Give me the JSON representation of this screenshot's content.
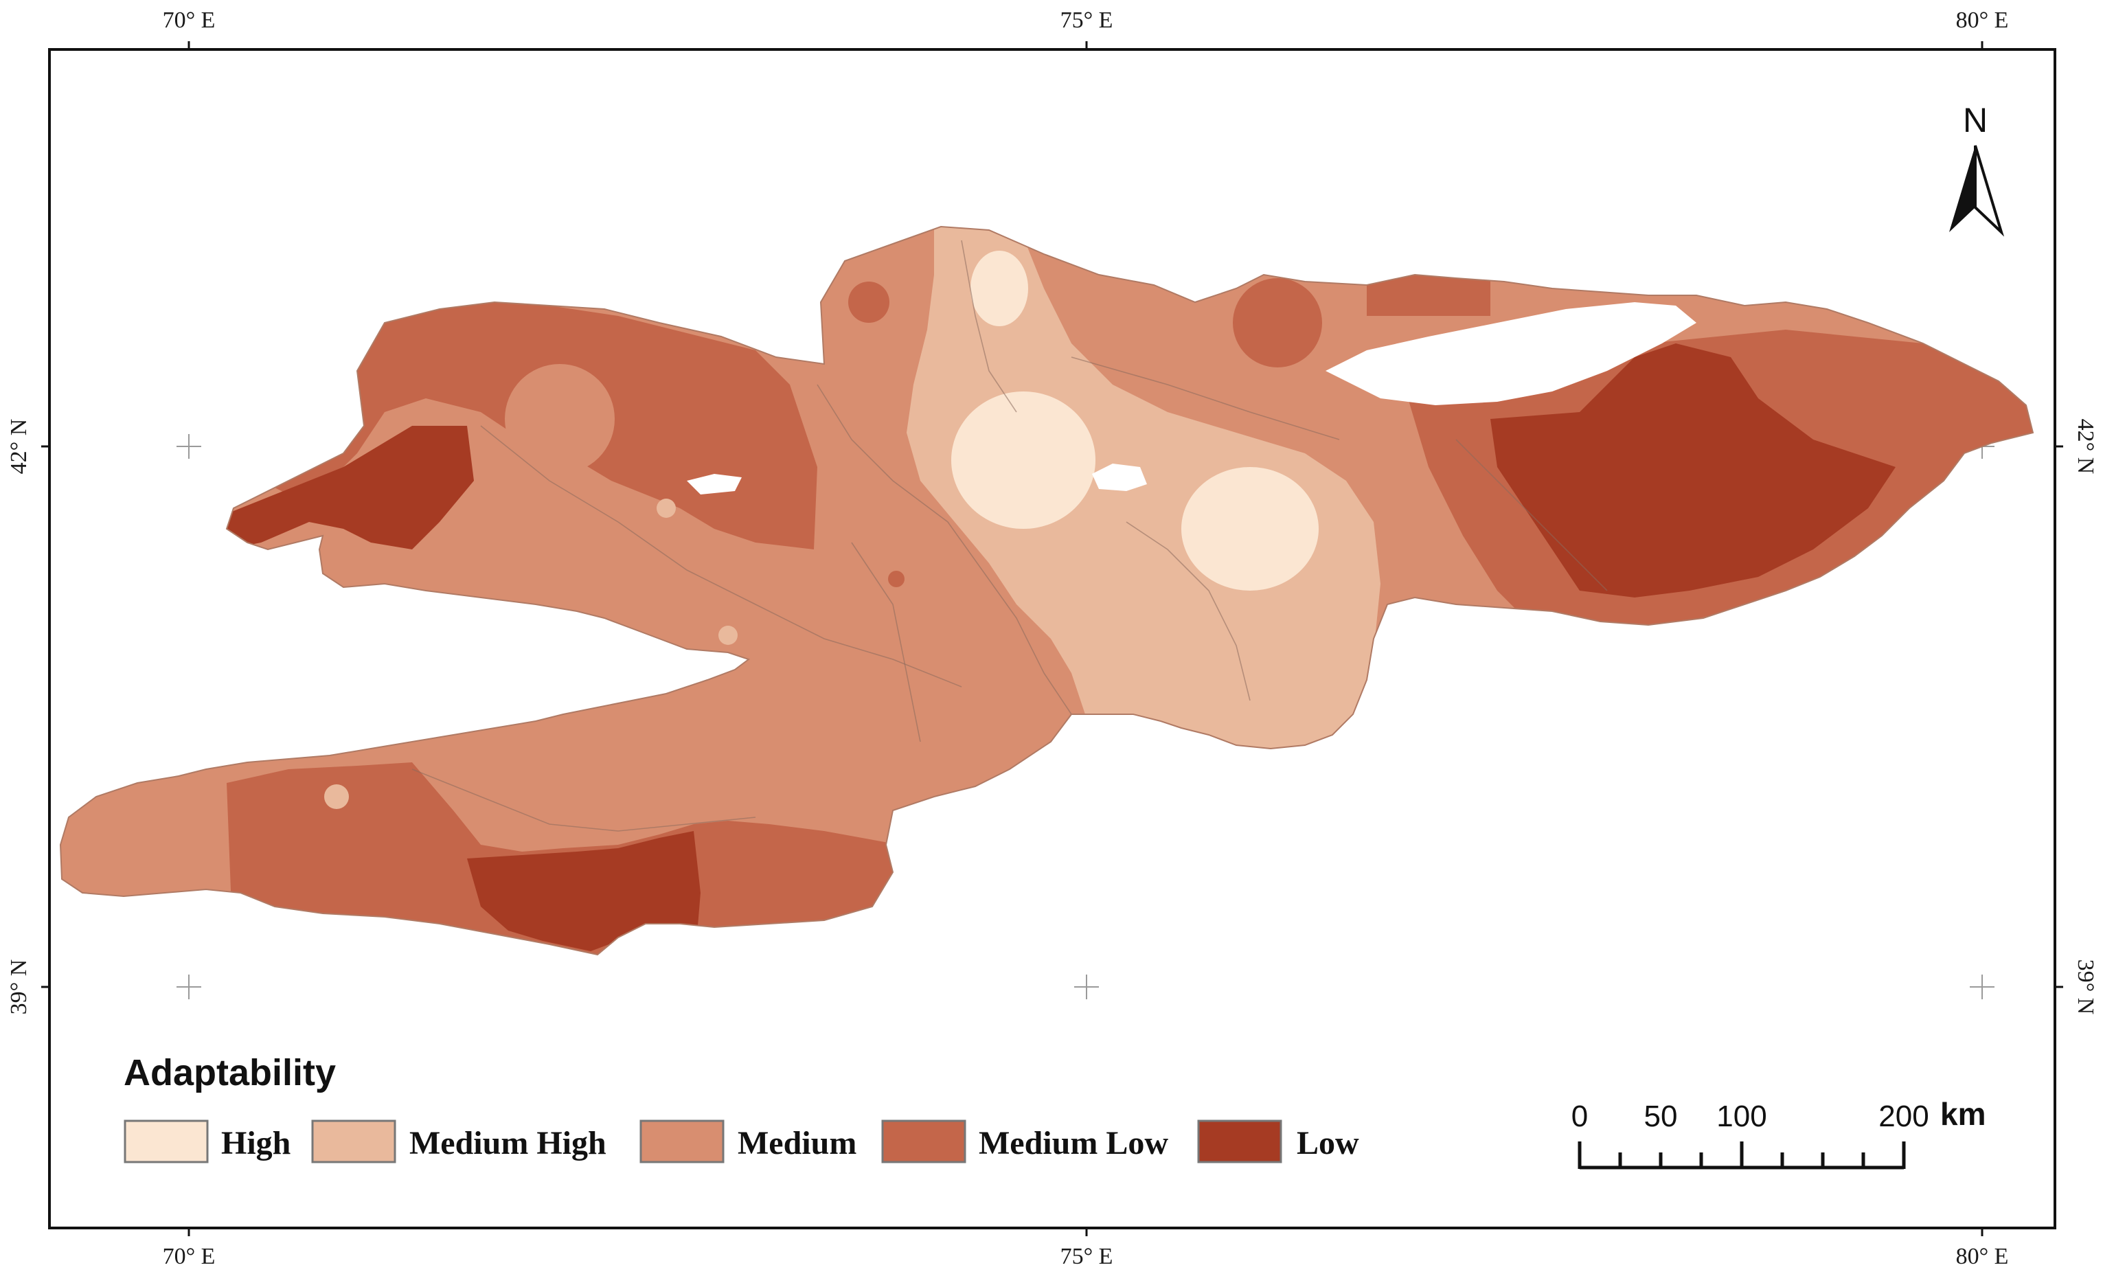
{
  "colors": {
    "high": "#fbe6d2",
    "medium_high": "#e9b99c",
    "medium": "#d88e70",
    "medium_low": "#c4664a",
    "low": "#a63b23",
    "lake": "#ffffff",
    "frame": "#111111",
    "grid_cross": "#9a9a9a"
  },
  "map": {
    "legend": {
      "title": "Adaptability",
      "classes": [
        {
          "label": "High",
          "color": "#fbe6d2"
        },
        {
          "label": "Medium High",
          "color": "#e9b99c"
        },
        {
          "label": "Medium",
          "color": "#d88e70"
        },
        {
          "label": "Medium Low",
          "color": "#c4664a"
        },
        {
          "label": "Low",
          "color": "#a63b23"
        }
      ]
    },
    "graticule": {
      "top": [
        "70° E",
        "75° E",
        "80° E"
      ],
      "bottom": [
        "70° E",
        "75° E",
        "80° E"
      ],
      "left": [
        "42° N",
        "39° N"
      ],
      "right": [
        "42° N",
        "39° N"
      ]
    },
    "north_arrow": {
      "label": "N",
      "icon": "north-arrow-icon"
    },
    "scale_bar": {
      "labels": [
        "0",
        "50",
        "100",
        "200"
      ],
      "unit": "km"
    }
  }
}
